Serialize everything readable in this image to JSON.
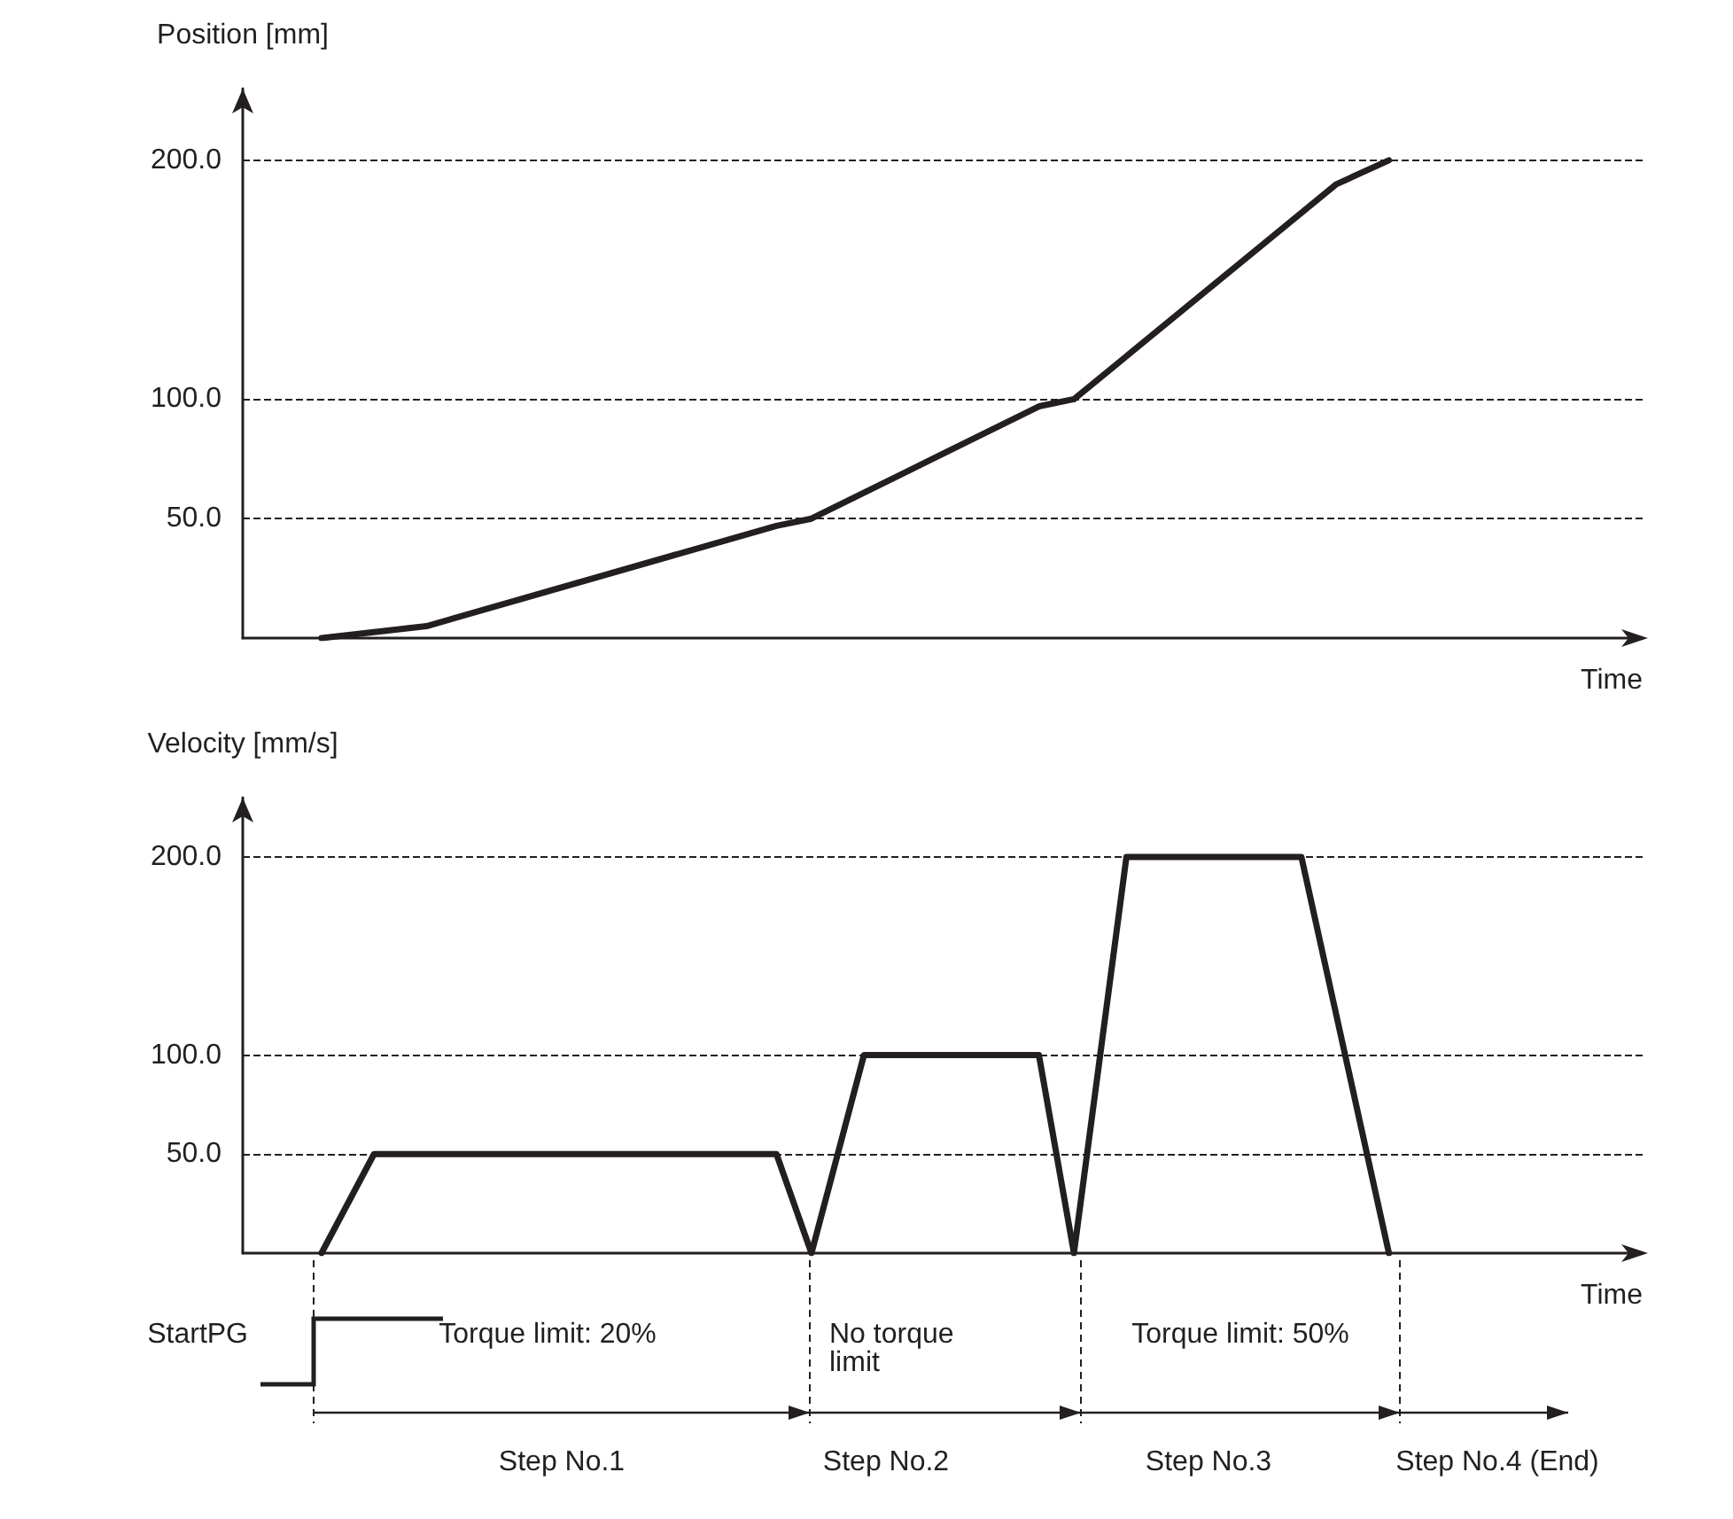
{
  "chart_data": [
    {
      "type": "line",
      "ylabel": "Position [mm]",
      "xlabel": "Time",
      "ylim": [
        0,
        230
      ],
      "yticks": [
        {
          "value": 50,
          "label": "50.0"
        },
        {
          "value": 100,
          "label": "100.0"
        },
        {
          "value": 200,
          "label": "200.0"
        }
      ],
      "tick_labels": "y",
      "grid": false,
      "marker": "none",
      "line_style": "solid",
      "categories": [
        null,
        null,
        null,
        null,
        null,
        null,
        null,
        null,
        null,
        null,
        null,
        null,
        null,
        null,
        null,
        null,
        null,
        null,
        null,
        null,
        null,
        null,
        null,
        null,
        null,
        null,
        null,
        null,
        null,
        null,
        null,
        null,
        null,
        null,
        null,
        null,
        null,
        null,
        null,
        null,
        null,
        null,
        null,
        null,
        null,
        null,
        null,
        null,
        null,
        null,
        null,
        null,
        null,
        null,
        null,
        null,
        null,
        null,
        null,
        null,
        null,
        null,
        null,
        null,
        null,
        null,
        null,
        null,
        null,
        null,
        null,
        null,
        null,
        null,
        null,
        null,
        null,
        null,
        null,
        null
      ],
      "series": [
        {
          "color": "#231f20",
          "values": [
            null,
            null,
            null,
            null,
            0,
            null,
            null,
            null,
            null,
            null,
            5,
            null,
            null,
            null,
            null,
            null,
            null,
            null,
            null,
            null,
            null,
            null,
            null,
            null,
            null,
            null,
            null,
            null,
            null,
            null,
            47,
            null,
            50,
            null,
            null,
            null,
            null,
            null,
            null,
            null,
            null,
            null,
            null,
            null,
            null,
            97,
            null,
            100,
            null,
            null,
            null,
            null,
            null,
            null,
            null,
            null,
            null,
            null,
            null,
            null,
            null,
            null,
            190,
            null,
            null,
            200,
            null,
            null,
            null,
            null,
            null,
            null,
            null,
            null,
            null,
            null,
            null,
            null,
            null,
            null
          ]
        }
      ],
      "ref_lines": [
        {
          "axis": "y",
          "value": 50,
          "color": "#231f20",
          "line_style": "dashed"
        },
        {
          "axis": "y",
          "value": 100,
          "color": "#231f20",
          "line_style": "dashed"
        },
        {
          "axis": "y",
          "value": 200,
          "color": "#231f20",
          "line_style": "dashed"
        }
      ]
    },
    {
      "type": "line",
      "ylabel": "Velocity [mm/s]",
      "xlabel": "Time",
      "ylim": [
        0,
        230
      ],
      "yticks": [
        {
          "value": 50,
          "label": "50.0"
        },
        {
          "value": 100,
          "label": "100.0"
        },
        {
          "value": 200,
          "label": "200.0"
        }
      ],
      "tick_labels": "y",
      "grid": false,
      "marker": "none",
      "line_style": "solid",
      "categories": [
        null,
        null,
        null,
        null,
        null,
        null,
        null,
        null,
        null,
        null,
        null,
        null,
        null,
        null,
        null,
        null,
        null,
        null,
        null,
        null,
        null,
        null,
        null,
        null,
        null,
        null,
        null,
        null,
        null,
        null,
        null,
        null,
        null,
        null,
        null,
        null,
        null,
        null,
        null,
        null,
        null,
        null,
        null,
        null,
        null,
        null,
        null,
        null,
        null,
        null,
        null,
        null,
        null,
        null,
        null,
        null,
        null,
        null,
        null,
        null,
        null,
        null,
        null,
        null,
        null,
        null,
        null,
        null,
        null,
        null,
        null,
        null,
        null,
        null,
        null,
        null,
        null,
        null,
        null,
        null
      ],
      "series": [
        {
          "color": "#231f20",
          "values": [
            null,
            null,
            null,
            null,
            0,
            null,
            null,
            50,
            null,
            null,
            null,
            null,
            null,
            null,
            null,
            null,
            null,
            null,
            null,
            null,
            null,
            null,
            null,
            null,
            null,
            null,
            null,
            null,
            null,
            null,
            50,
            null,
            0,
            null,
            null,
            100,
            null,
            null,
            null,
            null,
            null,
            null,
            null,
            null,
            null,
            100,
            null,
            0,
            null,
            null,
            200,
            null,
            null,
            null,
            null,
            null,
            null,
            null,
            null,
            null,
            200,
            null,
            null,
            null,
            null,
            0,
            null,
            null,
            null,
            null,
            null,
            null,
            null,
            null,
            null,
            null,
            null,
            null,
            null,
            null
          ]
        }
      ],
      "ref_lines": [
        {
          "axis": "y",
          "value": 50,
          "color": "#231f20",
          "line_style": "dashed"
        },
        {
          "axis": "y",
          "value": 100,
          "color": "#231f20",
          "line_style": "dashed"
        },
        {
          "axis": "y",
          "value": 200,
          "color": "#231f20",
          "line_style": "dashed"
        }
      ],
      "annotations": [
        "StartPG",
        "Torque limit: 20%",
        "No torque limit",
        "Torque limit: 50%",
        "Step No.1",
        "Step No.2",
        "Step No.3",
        "Step No.4 (End)"
      ]
    }
  ]
}
